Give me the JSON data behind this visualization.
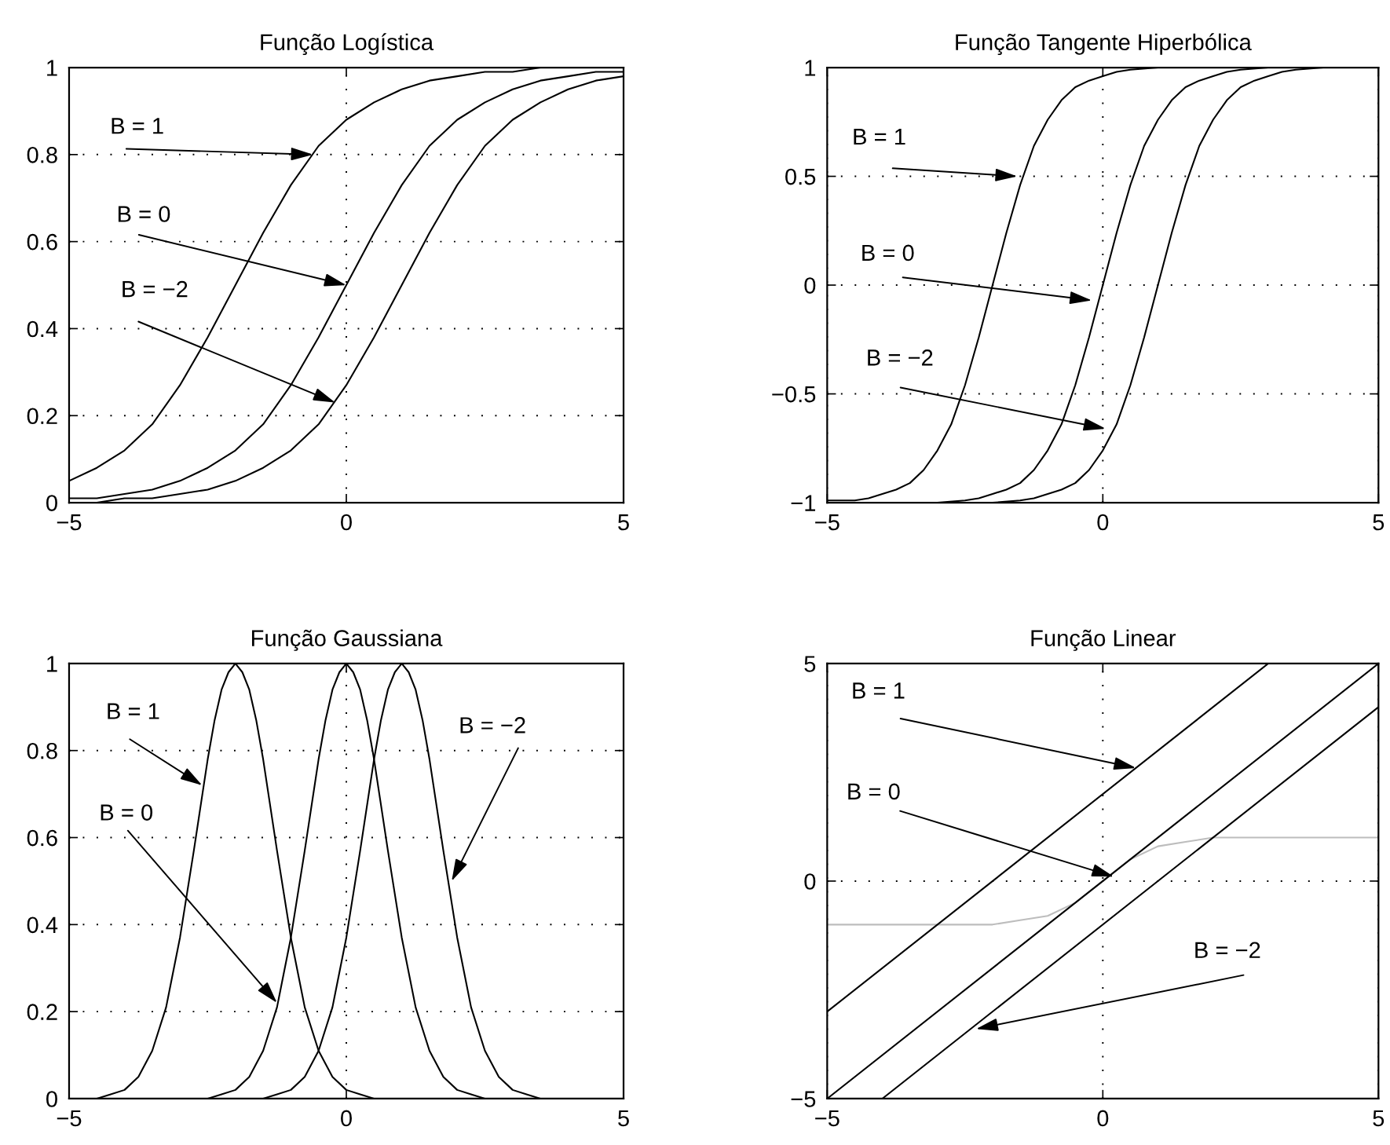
{
  "chart_data": [
    {
      "type": "line",
      "title": "Função Logística",
      "line_style": "solid",
      "xlim": [
        -5,
        5
      ],
      "ylim": [
        0,
        1
      ],
      "xticks": [
        -5,
        0,
        5
      ],
      "yticks": [
        0,
        0.2,
        0.4,
        0.6,
        0.8,
        1
      ],
      "grid": true,
      "series": [
        {
          "color": "#000000",
          "x": [
            -5,
            -4.5,
            -4,
            -3.5,
            -3,
            -2.5,
            -2,
            -1.5,
            -1,
            -0.5,
            0,
            0.5,
            1,
            1.5,
            2,
            2.5,
            3,
            3.5,
            4,
            4.5,
            5
          ],
          "values": [
            0.05,
            0.08,
            0.12,
            0.18,
            0.27,
            0.38,
            0.5,
            0.62,
            0.73,
            0.82,
            0.88,
            0.92,
            0.95,
            0.97,
            0.98,
            0.99,
            0.99,
            1,
            1,
            1,
            1
          ]
        },
        {
          "color": "#000000",
          "x": [
            -5,
            -4.5,
            -4,
            -3.5,
            -3,
            -2.5,
            -2,
            -1.5,
            -1,
            -0.5,
            0,
            0.5,
            1,
            1.5,
            2,
            2.5,
            3,
            3.5,
            4,
            4.5,
            5
          ],
          "values": [
            0.01,
            0.01,
            0.02,
            0.03,
            0.05,
            0.08,
            0.12,
            0.18,
            0.27,
            0.38,
            0.5,
            0.62,
            0.73,
            0.82,
            0.88,
            0.92,
            0.95,
            0.97,
            0.98,
            0.99,
            0.99
          ]
        },
        {
          "color": "#000000",
          "x": [
            -5,
            -4.5,
            -4,
            -3.5,
            -3,
            -2.5,
            -2,
            -1.5,
            -1,
            -0.5,
            0,
            0.5,
            1,
            1.5,
            2,
            2.5,
            3,
            3.5,
            4,
            4.5,
            5
          ],
          "values": [
            0,
            0,
            0.01,
            0.01,
            0.02,
            0.03,
            0.05,
            0.08,
            0.12,
            0.18,
            0.27,
            0.38,
            0.5,
            0.62,
            0.73,
            0.82,
            0.88,
            0.92,
            0.95,
            0.97,
            0.98
          ]
        }
      ],
      "annotations": [
        {
          "text": "B = 1",
          "x": -0.6,
          "y": 0.8
        },
        {
          "text": "B = 0",
          "x": 0,
          "y": 0.5
        },
        {
          "text": "B = −2",
          "x": -0.2,
          "y": 0.23
        }
      ]
    },
    {
      "type": "line",
      "title": "Função Tangente Hiperbólica",
      "line_style": "solid",
      "xlim": [
        -5,
        5
      ],
      "ylim": [
        -1,
        1
      ],
      "xticks": [
        -5,
        0,
        5
      ],
      "yticks": [
        -1,
        -0.5,
        0,
        0.5,
        1
      ],
      "grid": true,
      "series": [
        {
          "color": "#000000",
          "x": [
            -5,
            -4.5,
            -4.25,
            -4,
            -3.75,
            -3.5,
            -3.25,
            -3,
            -2.75,
            -2.5,
            -2.25,
            -2,
            -1.75,
            -1.5,
            -1.25,
            -1,
            -0.75,
            -0.5,
            -0.25,
            0,
            0.25,
            0.5,
            1,
            1.5,
            2,
            3,
            4,
            5
          ],
          "values": [
            -0.99,
            -0.99,
            -0.98,
            -0.96,
            -0.94,
            -0.91,
            -0.85,
            -0.76,
            -0.64,
            -0.46,
            -0.24,
            0,
            0.24,
            0.46,
            0.64,
            0.76,
            0.85,
            0.91,
            0.94,
            0.96,
            0.98,
            0.99,
            1,
            1,
            1,
            1,
            1,
            1
          ]
        },
        {
          "color": "#000000",
          "x": [
            -5,
            -4,
            -3,
            -2.5,
            -2.25,
            -2,
            -1.75,
            -1.5,
            -1.25,
            -1,
            -0.75,
            -0.5,
            -0.25,
            0,
            0.25,
            0.5,
            0.75,
            1,
            1.25,
            1.5,
            1.75,
            2,
            2.25,
            2.5,
            3
          ],
          "values": [
            -1,
            -1,
            -1,
            -0.99,
            -0.98,
            -0.96,
            -0.94,
            -0.91,
            -0.85,
            -0.76,
            -0.64,
            -0.46,
            -0.24,
            0,
            0.24,
            0.46,
            0.64,
            0.76,
            0.85,
            0.91,
            0.94,
            0.96,
            0.98,
            0.99,
            1
          ]
        },
        {
          "color": "#000000",
          "x": [
            -3,
            -2,
            -1.5,
            -1.25,
            -1,
            -0.75,
            -0.5,
            -0.25,
            0,
            0.25,
            0.5,
            0.75,
            1,
            1.25,
            1.5,
            1.75,
            2,
            2.25,
            2.5,
            2.75,
            3,
            3.25,
            3.5,
            4,
            4.5,
            5
          ],
          "values": [
            -1,
            -1,
            -0.99,
            -0.98,
            -0.96,
            -0.94,
            -0.91,
            -0.85,
            -0.76,
            -0.64,
            -0.46,
            -0.24,
            0,
            0.24,
            0.46,
            0.64,
            0.76,
            0.85,
            0.91,
            0.94,
            0.96,
            0.98,
            0.99,
            1,
            1,
            1
          ]
        }
      ],
      "annotations": [
        {
          "text": "B = 1",
          "x": -1.55,
          "y": 0.5
        },
        {
          "text": "B = 0",
          "x": -0.2,
          "y": -0.07
        },
        {
          "text": "B = −2",
          "x": 0.05,
          "y": -0.66
        }
      ]
    },
    {
      "type": "line",
      "title": "Função Gaussiana",
      "line_style": "solid",
      "xlim": [
        -5,
        5
      ],
      "ylim": [
        0,
        1
      ],
      "xticks": [
        -5,
        0,
        5
      ],
      "yticks": [
        0,
        0.2,
        0.4,
        0.6,
        0.8,
        1
      ],
      "grid": true,
      "series": [
        {
          "color": "#000000",
          "x": [
            -5,
            -4.5,
            -4.25,
            -4,
            -3.75,
            -3.5,
            -3.25,
            -3,
            -2.75,
            -2.5,
            -2.375,
            -2.25,
            -2.125,
            -2,
            -1.875,
            -1.75,
            -1.625,
            -1.5,
            -1.25,
            -1,
            -0.75,
            -0.5,
            -0.25,
            0,
            0.25,
            0.5,
            1
          ],
          "values": [
            0,
            0,
            0.01,
            0.02,
            0.05,
            0.11,
            0.21,
            0.37,
            0.57,
            0.78,
            0.87,
            0.94,
            0.98,
            1,
            0.98,
            0.94,
            0.87,
            0.78,
            0.57,
            0.37,
            0.21,
            0.11,
            0.05,
            0.02,
            0.01,
            0,
            0
          ]
        },
        {
          "color": "#000000",
          "x": [
            -3,
            -2.5,
            -2.25,
            -2,
            -1.75,
            -1.5,
            -1.25,
            -1,
            -0.75,
            -0.5,
            -0.375,
            -0.25,
            -0.125,
            0,
            0.125,
            0.25,
            0.375,
            0.5,
            0.75,
            1,
            1.25,
            1.5,
            1.75,
            2,
            2.25,
            2.5,
            3
          ],
          "values": [
            0,
            0,
            0.01,
            0.02,
            0.05,
            0.11,
            0.21,
            0.37,
            0.57,
            0.78,
            0.87,
            0.94,
            0.98,
            1,
            0.98,
            0.94,
            0.87,
            0.78,
            0.57,
            0.37,
            0.21,
            0.11,
            0.05,
            0.02,
            0.01,
            0,
            0
          ]
        },
        {
          "color": "#000000",
          "x": [
            -2,
            -1.5,
            -1.25,
            -1,
            -0.75,
            -0.5,
            -0.25,
            0,
            0.25,
            0.5,
            0.625,
            0.75,
            0.875,
            1,
            1.125,
            1.25,
            1.375,
            1.5,
            1.75,
            2,
            2.25,
            2.5,
            2.75,
            3,
            3.25,
            3.5,
            4,
            5
          ],
          "values": [
            0,
            0,
            0.01,
            0.02,
            0.05,
            0.11,
            0.21,
            0.37,
            0.57,
            0.78,
            0.87,
            0.94,
            0.98,
            1,
            0.98,
            0.94,
            0.87,
            0.78,
            0.57,
            0.37,
            0.21,
            0.11,
            0.05,
            0.02,
            0.01,
            0,
            0,
            0
          ]
        }
      ],
      "annotations": [
        {
          "text": "B = 1",
          "x": -2.6,
          "y": 0.72
        },
        {
          "text": "B = 0",
          "x": -1.25,
          "y": 0.22
        },
        {
          "text": "B = −2",
          "x": 1.9,
          "y": 0.5
        }
      ]
    },
    {
      "type": "line",
      "title": "Função Linear",
      "line_style": "solid",
      "xlim": [
        -5,
        5
      ],
      "ylim": [
        -5,
        5
      ],
      "xticks": [
        -5,
        0,
        5
      ],
      "yticks": [
        -5,
        0,
        5
      ],
      "grid": true,
      "series": [
        {
          "color": "#bdbdbd",
          "x": [
            -5,
            -2.5,
            -2,
            -1.5,
            -1,
            -0.5,
            0,
            0.5,
            1,
            1.5,
            2,
            2.5,
            5
          ],
          "values": [
            -1,
            -1,
            -1,
            -0.9,
            -0.8,
            -0.5,
            0,
            0.5,
            0.8,
            0.9,
            1,
            1,
            1
          ]
        },
        {
          "color": "#000000",
          "x": [
            -5,
            3
          ],
          "values": [
            -3,
            5
          ]
        },
        {
          "color": "#000000",
          "x": [
            -5,
            5
          ],
          "values": [
            -5,
            5
          ]
        },
        {
          "color": "#000000",
          "x": [
            -4,
            5
          ],
          "values": [
            -5,
            4
          ]
        }
      ],
      "annotations": [
        {
          "text": "B = 1",
          "x": 0.6,
          "y": 2.6
        },
        {
          "text": "B = 0",
          "x": 0.2,
          "y": 0.1
        },
        {
          "text": "B = −2",
          "x": -2.3,
          "y": -3.4
        }
      ]
    }
  ]
}
